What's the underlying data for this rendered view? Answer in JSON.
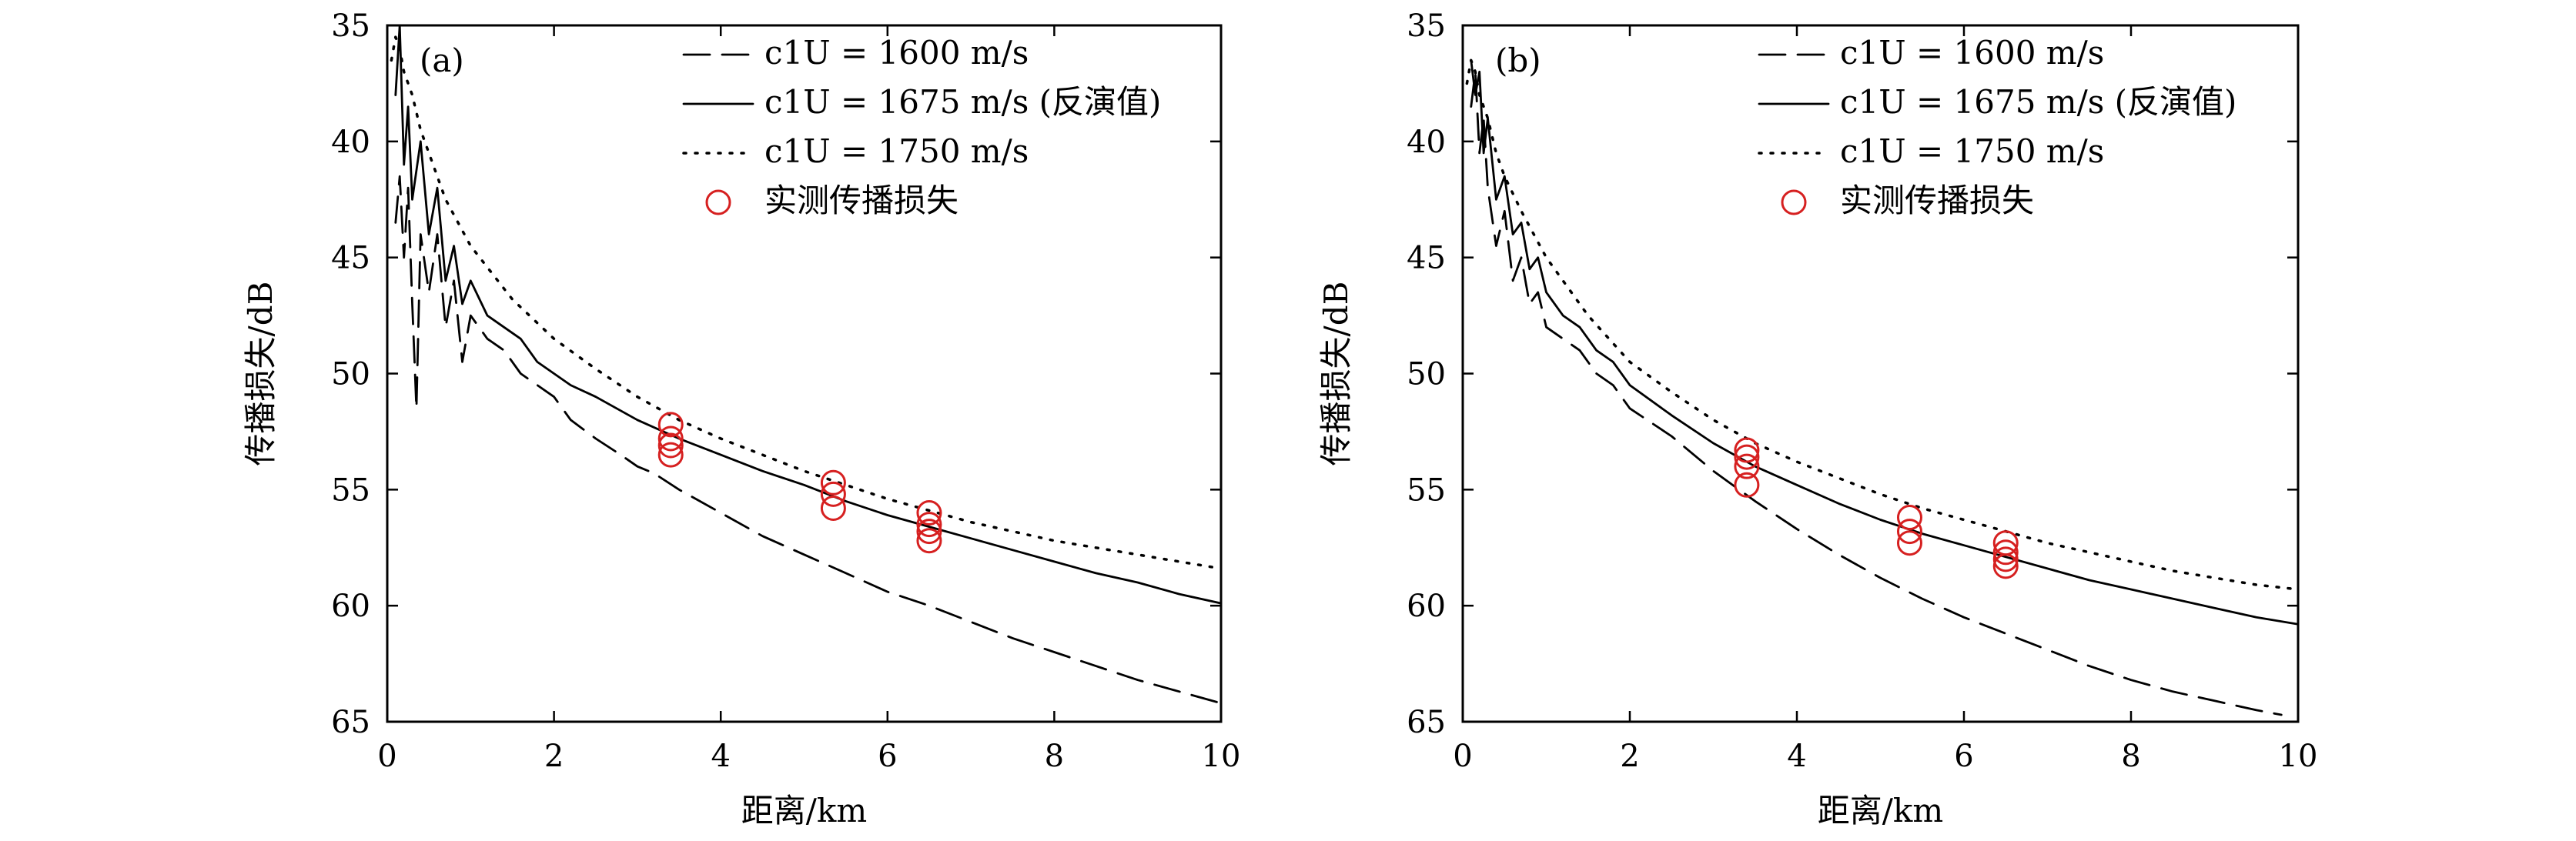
{
  "chart_data": [
    {
      "type": "line",
      "panel_label": "(a)",
      "xlabel": "距离/km",
      "ylabel": "传播损失/dB",
      "xlim": [
        0,
        10
      ],
      "ylim": [
        35,
        65
      ],
      "y_inverted": true,
      "xticks": [
        "0",
        "2",
        "4",
        "6",
        "8",
        "10"
      ],
      "yticks": [
        "35",
        "40",
        "45",
        "50",
        "55",
        "60",
        "65"
      ],
      "grid": false,
      "legend_position": "top-right",
      "series": [
        {
          "name": "c1U = 1600 m/s",
          "style": "dashed",
          "color": "#000000",
          "x": [
            0.1,
            0.15,
            0.2,
            0.25,
            0.3,
            0.35,
            0.4,
            0.5,
            0.6,
            0.7,
            0.8,
            0.9,
            1.0,
            1.2,
            1.4,
            1.6,
            1.8,
            2.0,
            2.2,
            2.5,
            2.8,
            3.0,
            3.2,
            3.5,
            4.0,
            4.5,
            5.0,
            5.5,
            6.0,
            6.5,
            7.0,
            7.5,
            8.0,
            8.5,
            9.0,
            9.5,
            10.0
          ],
          "y": [
            43.5,
            41.5,
            45.0,
            42.0,
            47.0,
            51.5,
            44.0,
            46.5,
            44.0,
            48.0,
            46.0,
            49.5,
            47.5,
            48.5,
            49.0,
            50.0,
            50.5,
            51.0,
            52.0,
            52.8,
            53.5,
            54.0,
            54.3,
            55.0,
            56.0,
            57.0,
            57.8,
            58.6,
            59.4,
            60.0,
            60.7,
            61.4,
            62.0,
            62.6,
            63.2,
            63.7,
            64.2
          ]
        },
        {
          "name": "c1U = 1675 m/s (反演值)",
          "style": "solid",
          "color": "#000000",
          "x": [
            0.1,
            0.15,
            0.2,
            0.25,
            0.3,
            0.4,
            0.5,
            0.6,
            0.7,
            0.8,
            0.9,
            1.0,
            1.2,
            1.4,
            1.6,
            1.8,
            2.0,
            2.2,
            2.5,
            3.0,
            3.5,
            4.0,
            4.5,
            5.0,
            5.5,
            6.0,
            6.5,
            7.0,
            7.5,
            8.0,
            8.5,
            9.0,
            9.5,
            10.0
          ],
          "y": [
            38.0,
            35.0,
            41.0,
            38.5,
            42.5,
            40.0,
            44.0,
            42.0,
            46.0,
            44.5,
            47.0,
            46.0,
            47.5,
            48.0,
            48.5,
            49.5,
            50.0,
            50.5,
            51.0,
            52.0,
            52.8,
            53.5,
            54.2,
            54.8,
            55.5,
            56.1,
            56.6,
            57.1,
            57.6,
            58.1,
            58.6,
            59.0,
            59.5,
            59.9
          ]
        },
        {
          "name": "c1U = 1750 m/s",
          "style": "dotted",
          "color": "#000000",
          "x": [
            0.05,
            0.1,
            0.15,
            0.2,
            0.3,
            0.4,
            0.5,
            0.7,
            1.0,
            1.5,
            2.0,
            2.5,
            3.0,
            3.5,
            4.0,
            4.5,
            5.0,
            5.5,
            6.0,
            6.5,
            7.0,
            7.5,
            8.0,
            8.5,
            9.0,
            9.5,
            10.0
          ],
          "y": [
            36.5,
            35.5,
            36.0,
            37.0,
            38.0,
            39.5,
            40.5,
            42.5,
            44.5,
            46.8,
            48.5,
            49.8,
            51.0,
            52.0,
            52.8,
            53.5,
            54.2,
            54.8,
            55.4,
            55.9,
            56.4,
            56.8,
            57.2,
            57.5,
            57.8,
            58.1,
            58.4
          ]
        },
        {
          "name": "实测传播损失",
          "style": "marker-circle",
          "color": "#d62020",
          "x": [
            3.4,
            3.4,
            3.4,
            3.4,
            5.35,
            5.35,
            5.35,
            6.5,
            6.5,
            6.5,
            6.5
          ],
          "y": [
            52.2,
            52.8,
            53.1,
            53.5,
            54.7,
            55.2,
            55.8,
            56.0,
            56.5,
            56.8,
            57.2
          ]
        }
      ]
    },
    {
      "type": "line",
      "panel_label": "(b)",
      "xlabel": "距离/km",
      "ylabel": "传播损失/dB",
      "xlim": [
        0,
        10
      ],
      "ylim": [
        35,
        65
      ],
      "y_inverted": true,
      "xticks": [
        "0",
        "2",
        "4",
        "6",
        "8",
        "10"
      ],
      "yticks": [
        "35",
        "40",
        "45",
        "50",
        "55",
        "60",
        "65"
      ],
      "grid": false,
      "legend_position": "top-right",
      "series": [
        {
          "name": "c1U = 1600 m/s",
          "style": "dashed",
          "color": "#000000",
          "x": [
            0.1,
            0.15,
            0.2,
            0.25,
            0.3,
            0.4,
            0.5,
            0.6,
            0.7,
            0.8,
            0.9,
            1.0,
            1.2,
            1.4,
            1.6,
            1.8,
            2.0,
            2.5,
            3.0,
            3.5,
            4.0,
            4.5,
            5.0,
            5.5,
            6.0,
            6.5,
            7.0,
            7.5,
            8.0,
            8.5,
            9.0,
            9.5,
            9.8
          ],
          "y": [
            38.5,
            37.0,
            40.5,
            39.0,
            42.0,
            44.5,
            43.0,
            46.0,
            45.0,
            47.0,
            46.5,
            48.0,
            48.5,
            49.0,
            50.0,
            50.5,
            51.5,
            52.7,
            54.2,
            55.5,
            56.7,
            57.8,
            58.8,
            59.7,
            60.5,
            61.2,
            61.9,
            62.6,
            63.2,
            63.7,
            64.1,
            64.5,
            64.7
          ]
        },
        {
          "name": "c1U = 1675 m/s (反演值)",
          "style": "solid",
          "color": "#000000",
          "x": [
            0.1,
            0.15,
            0.2,
            0.25,
            0.3,
            0.4,
            0.5,
            0.6,
            0.7,
            0.8,
            0.9,
            1.0,
            1.2,
            1.4,
            1.6,
            1.8,
            2.0,
            2.5,
            3.0,
            3.5,
            4.0,
            4.5,
            5.0,
            5.5,
            6.0,
            6.5,
            7.0,
            7.5,
            8.0,
            8.5,
            9.0,
            9.5,
            10.0
          ],
          "y": [
            36.5,
            38.0,
            37.0,
            40.5,
            39.0,
            42.5,
            41.5,
            44.0,
            43.5,
            45.5,
            45.0,
            46.5,
            47.5,
            48.0,
            49.0,
            49.5,
            50.5,
            51.8,
            53.0,
            54.0,
            54.8,
            55.6,
            56.3,
            56.9,
            57.4,
            57.9,
            58.4,
            58.9,
            59.3,
            59.7,
            60.1,
            60.5,
            60.8
          ]
        },
        {
          "name": "c1U = 1750 m/s",
          "style": "dotted",
          "color": "#000000",
          "x": [
            0.05,
            0.1,
            0.15,
            0.2,
            0.3,
            0.4,
            0.5,
            0.7,
            1.0,
            1.5,
            2.0,
            2.5,
            3.0,
            3.5,
            4.0,
            4.5,
            5.0,
            5.5,
            6.0,
            6.5,
            7.0,
            7.5,
            8.0,
            8.5,
            9.0,
            9.5,
            10.0
          ],
          "y": [
            37.5,
            36.5,
            37.0,
            38.0,
            39.0,
            40.5,
            41.5,
            43.0,
            45.0,
            47.5,
            49.5,
            50.8,
            52.0,
            53.0,
            53.8,
            54.5,
            55.2,
            55.8,
            56.3,
            56.8,
            57.3,
            57.7,
            58.1,
            58.5,
            58.8,
            59.1,
            59.3
          ]
        },
        {
          "name": "实测传播损失",
          "style": "marker-circle",
          "color": "#d62020",
          "x": [
            3.4,
            3.4,
            3.4,
            3.4,
            5.35,
            5.35,
            5.35,
            6.5,
            6.5,
            6.5,
            6.5
          ],
          "y": [
            53.3,
            53.6,
            54.0,
            54.8,
            56.2,
            56.8,
            57.3,
            57.3,
            57.7,
            58.0,
            58.3
          ]
        }
      ]
    }
  ]
}
